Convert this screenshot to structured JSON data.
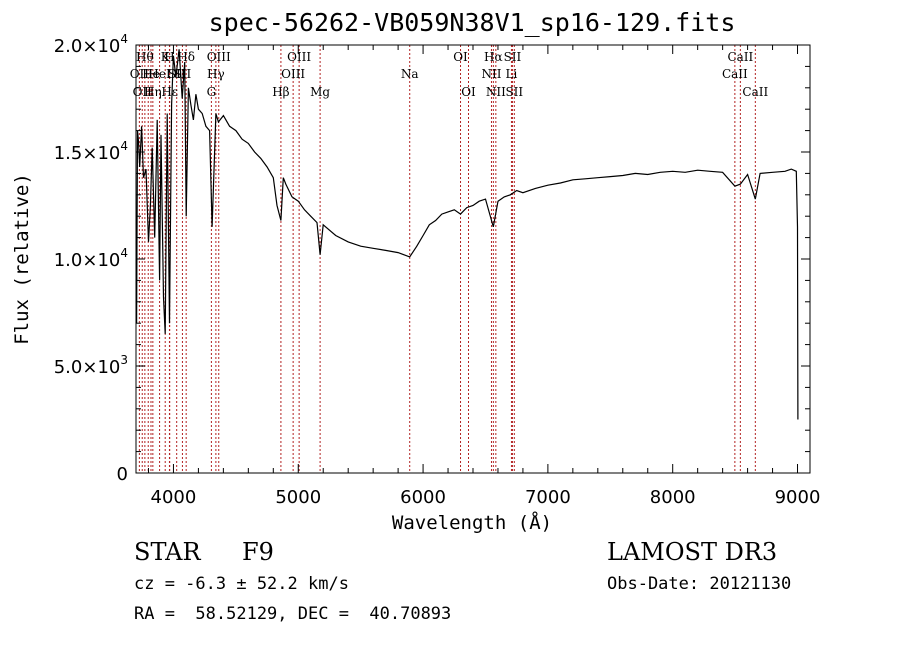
{
  "chart_data": {
    "type": "line",
    "title": "spec-56262-VB059N38V1_sp16-129.fits",
    "xlabel": "Wavelength (Å)",
    "ylabel": "Flux (relative)",
    "xlim": [
      3700,
      9100
    ],
    "ylim": [
      0,
      20000
    ],
    "x_ticks": [
      {
        "value": 4000,
        "label": "4000"
      },
      {
        "value": 5000,
        "label": "5000"
      },
      {
        "value": 6000,
        "label": "6000"
      },
      {
        "value": 7000,
        "label": "7000"
      },
      {
        "value": 8000,
        "label": "8000"
      },
      {
        "value": 9000,
        "label": "9000"
      }
    ],
    "y_ticks": [
      {
        "value": 0,
        "mantissa": "0",
        "exp": ""
      },
      {
        "value": 5000,
        "mantissa": "5.0×10",
        "exp": "3"
      },
      {
        "value": 10000,
        "mantissa": "1.0×10",
        "exp": "4"
      },
      {
        "value": 15000,
        "mantissa": "1.5×10",
        "exp": "4"
      },
      {
        "value": 20000,
        "mantissa": "2.0×10",
        "exp": "4"
      }
    ],
    "grid": false,
    "series": [
      {
        "x": [
          3705,
          3712,
          3720,
          3730,
          3745,
          3760,
          3780,
          3800,
          3815,
          3830,
          3850,
          3870,
          3889,
          3900,
          3920,
          3934,
          3950,
          3968,
          3985,
          4000,
          4020,
          4045,
          4070,
          4090,
          4102,
          4120,
          4140,
          4160,
          4180,
          4200,
          4230,
          4260,
          4290,
          4310,
          4340,
          4360,
          4400,
          4450,
          4500,
          4550,
          4600,
          4650,
          4700,
          4750,
          4800,
          4830,
          4861,
          4880,
          4900,
          4950,
          5000,
          5050,
          5100,
          5150,
          5175,
          5200,
          5300,
          5400,
          5500,
          5600,
          5700,
          5800,
          5893,
          5950,
          6000,
          6050,
          6100,
          6150,
          6200,
          6250,
          6300,
          6350,
          6400,
          6450,
          6500,
          6563,
          6600,
          6650,
          6700,
          6750,
          6800,
          6900,
          7000,
          7100,
          7200,
          7300,
          7400,
          7500,
          7600,
          7700,
          7800,
          7900,
          8000,
          8100,
          8200,
          8300,
          8400,
          8498,
          8542,
          8600,
          8662,
          8700,
          8800,
          8900,
          8950,
          8990,
          9000,
          9003
        ],
        "y": [
          7000,
          16000,
          15500,
          14300,
          16200,
          13800,
          14200,
          10800,
          12500,
          15200,
          11000,
          16500,
          9000,
          15800,
          8200,
          6500,
          16800,
          7000,
          17200,
          19500,
          18500,
          19800,
          17500,
          19200,
          12000,
          18000,
          17200,
          16500,
          17700,
          17000,
          16800,
          16200,
          16000,
          11500,
          16800,
          16400,
          16700,
          16200,
          16000,
          15600,
          15400,
          15000,
          14700,
          14300,
          13800,
          12500,
          11800,
          13800,
          13500,
          12900,
          12700,
          12300,
          12000,
          11700,
          10200,
          11600,
          11100,
          10800,
          10600,
          10500,
          10400,
          10300,
          10100,
          10600,
          11100,
          11600,
          11800,
          12100,
          12200,
          12300,
          12100,
          12400,
          12500,
          12700,
          12800,
          11500,
          12700,
          12900,
          13000,
          13200,
          13100,
          13300,
          13450,
          13550,
          13700,
          13750,
          13800,
          13850,
          13900,
          14000,
          13950,
          14050,
          14100,
          14050,
          14150,
          14100,
          14050,
          13400,
          13500,
          13950,
          12800,
          14000,
          14050,
          14100,
          14200,
          14100,
          11500,
          2500
        ]
      }
    ],
    "line_groups": [
      {
        "color": "#b22222",
        "lines": [
          {
            "x": 3727,
            "row": 1,
            "label": "OII"
          },
          {
            "x": 3750,
            "row": 2,
            "label": "OII"
          },
          {
            "x": 3771,
            "row": 0,
            "label": "Hθ"
          },
          {
            "x": 3798,
            "row": 0,
            "label": ""
          },
          {
            "x": 3820,
            "row": 1,
            "label": "He"
          },
          {
            "x": 3835,
            "row": 2,
            "label": "Hη"
          },
          {
            "x": 3889,
            "row": 1,
            "label": "HeI"
          },
          {
            "x": 3934,
            "row": 0,
            "label": "K"
          },
          {
            "x": 3968,
            "row": 0,
            "label": "H"
          },
          {
            "x": 3970,
            "row": 2,
            "label": "Hε"
          },
          {
            "x": 4026,
            "row": 1,
            "label": "SII"
          },
          {
            "x": 4072,
            "row": 1,
            "label": "SII"
          },
          {
            "x": 4102,
            "row": 0,
            "label": "Hδ"
          },
          {
            "x": 4304,
            "row": 2,
            "label": "G"
          },
          {
            "x": 4340,
            "row": 1,
            "label": "Hγ"
          },
          {
            "x": 4363,
            "row": 0,
            "label": "OIII"
          },
          {
            "x": 4861,
            "row": 2,
            "label": "Hβ"
          },
          {
            "x": 4959,
            "row": 1,
            "label": "OIII"
          },
          {
            "x": 5007,
            "row": 0,
            "label": "OIII"
          },
          {
            "x": 5175,
            "row": 2,
            "label": "Mg"
          },
          {
            "x": 5893,
            "row": 1,
            "label": "Na"
          },
          {
            "x": 6300,
            "row": 0,
            "label": "OI"
          },
          {
            "x": 6364,
            "row": 2,
            "label": "OI"
          },
          {
            "x": 6548,
            "row": 1,
            "label": "NII"
          },
          {
            "x": 6563,
            "row": 0,
            "label": "Hα"
          },
          {
            "x": 6583,
            "row": 2,
            "label": "NII"
          },
          {
            "x": 6708,
            "row": 1,
            "label": "Li"
          },
          {
            "x": 6716,
            "row": 0,
            "label": "SII"
          },
          {
            "x": 6731,
            "row": 2,
            "label": "SII"
          },
          {
            "x": 8498,
            "row": 1,
            "label": "CaII"
          },
          {
            "x": 8542,
            "row": 0,
            "label": "CaII"
          },
          {
            "x": 8662,
            "row": 2,
            "label": "CaII"
          }
        ]
      }
    ]
  },
  "info": {
    "object_class": "STAR",
    "subclass": "F9",
    "survey": "LAMOST DR3",
    "redshift_line": "cz = -6.3 ± 52.2 km/s",
    "obs_date_line": "Obs-Date: 20121130",
    "coords_line": "RA =  58.52129, DEC =  40.70893"
  }
}
